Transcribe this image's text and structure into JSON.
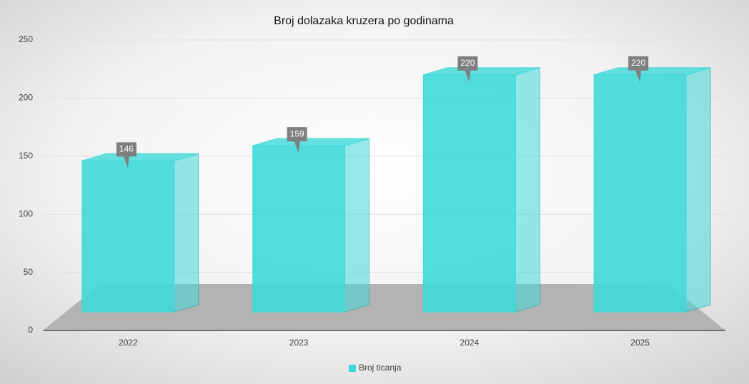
{
  "chart_data": {
    "type": "bar3d",
    "title": "Broj dolazaka kruzera po godinama",
    "categories": [
      "2022",
      "2023",
      "2024",
      "2025"
    ],
    "series": [
      {
        "name": "Broj ticanja",
        "color": "#3fd9d9",
        "values": [
          146,
          159,
          220,
          220
        ]
      }
    ],
    "ylim": [
      0,
      250
    ],
    "yticks": [
      0,
      50,
      100,
      150,
      200,
      250
    ],
    "grid": true,
    "legend": "bottom"
  }
}
